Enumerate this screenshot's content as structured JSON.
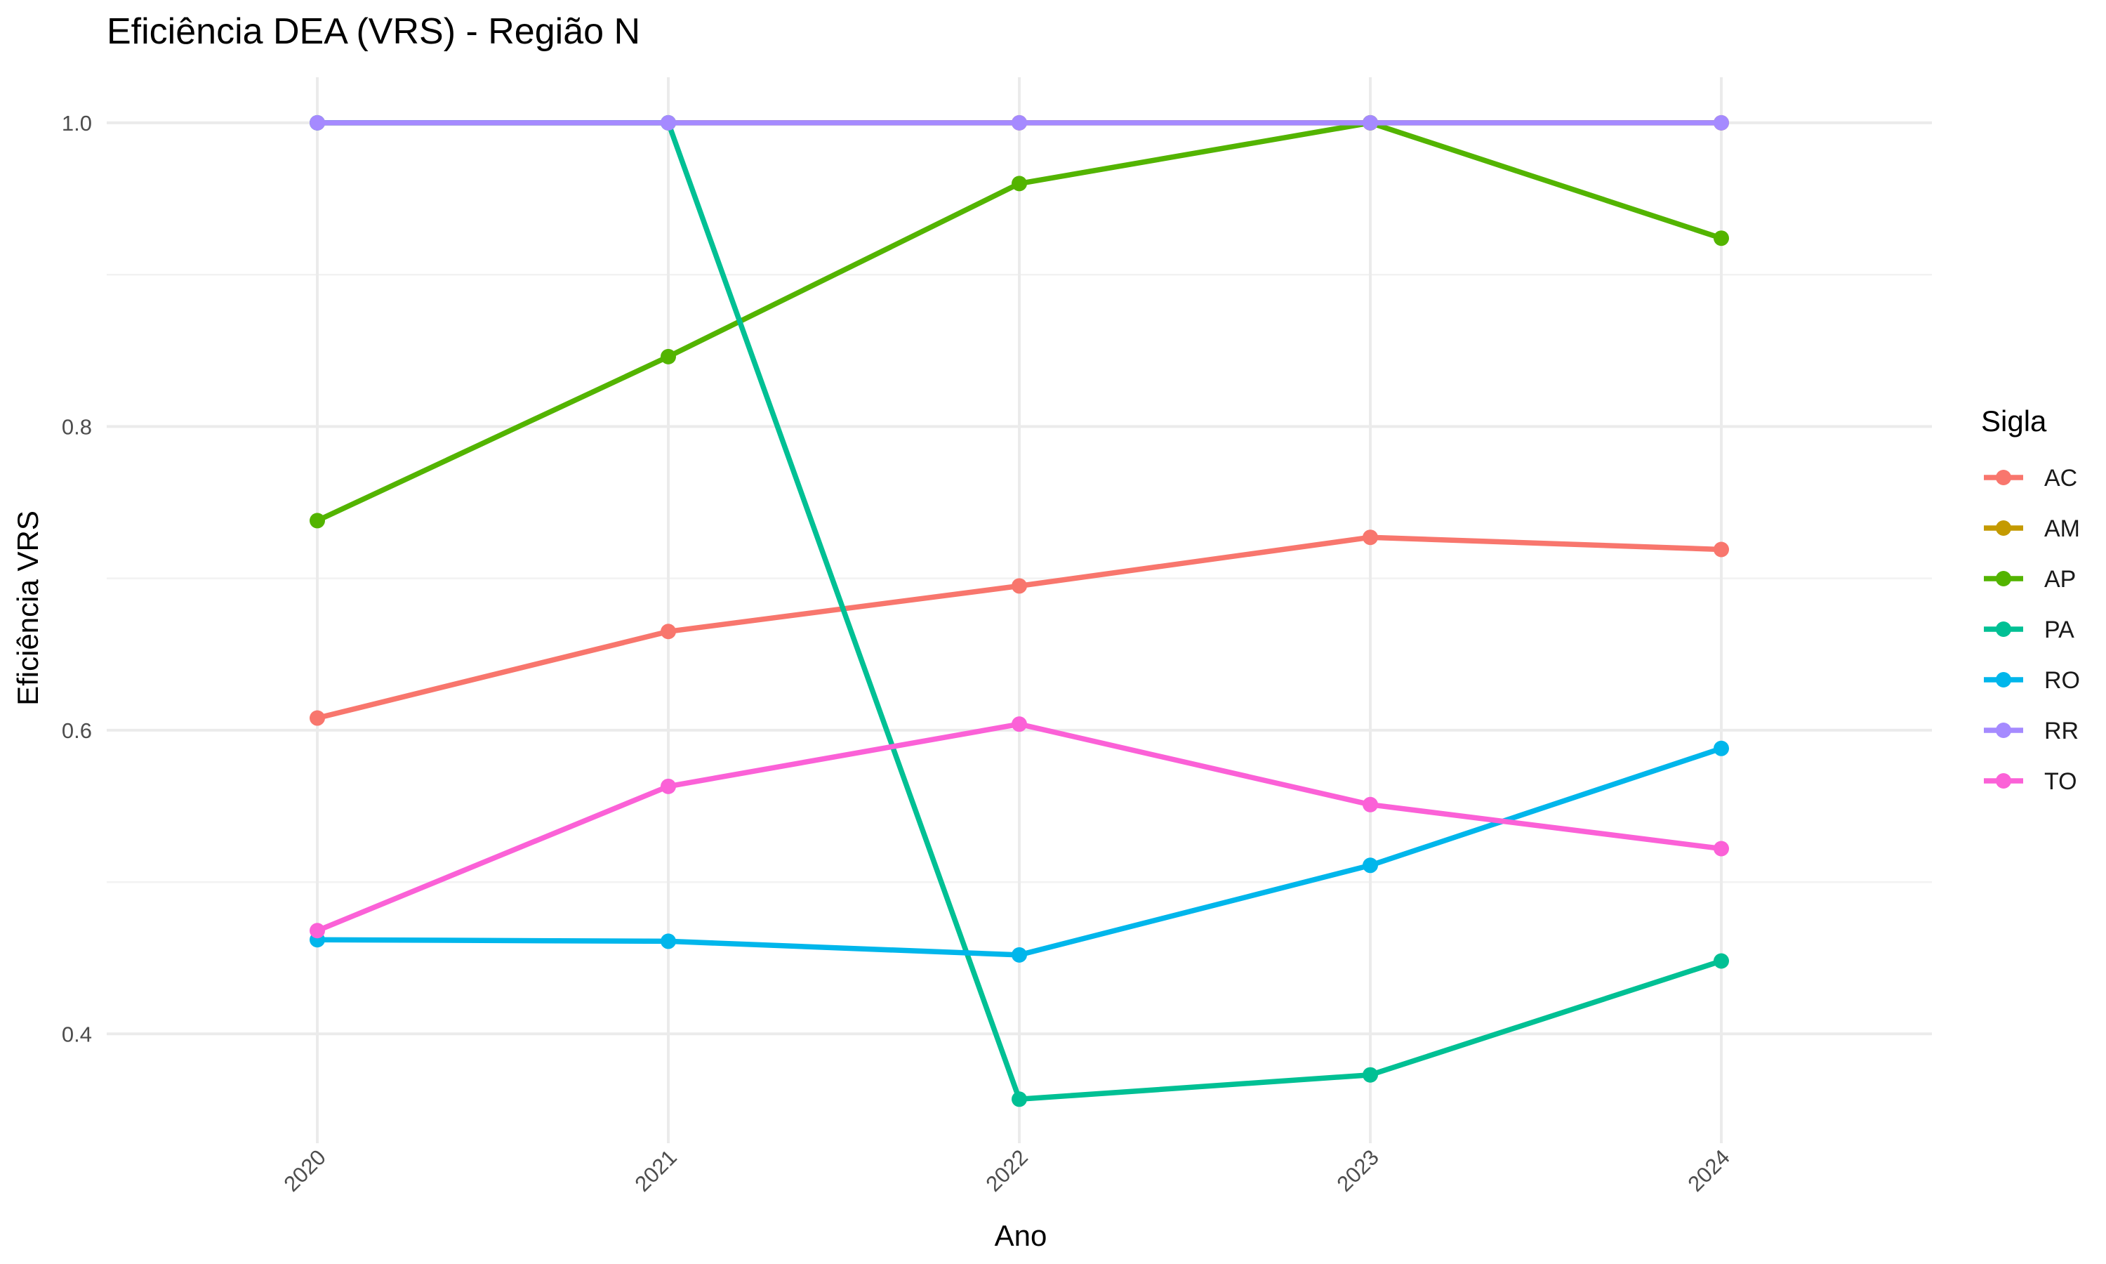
{
  "chart_data": {
    "type": "line",
    "title": "Eficiência DEA (VRS) - Região N",
    "xlabel": "Ano",
    "ylabel": "Eficiência VRS",
    "x": [
      2020,
      2021,
      2022,
      2023,
      2024
    ],
    "x_tick_labels": [
      "2020",
      "2021",
      "2022",
      "2023",
      "2024"
    ],
    "y_ticks": [
      0.4,
      0.6,
      0.8,
      1.0
    ],
    "y_tick_labels": [
      "0.4",
      "0.6",
      "0.8",
      "1.0"
    ],
    "ylim": [
      0.328,
      1.03
    ],
    "xlim": [
      2019.4,
      2024.6
    ],
    "grid": true,
    "legend_title": "Sigla",
    "legend_position": "right",
    "series": [
      {
        "name": "AC",
        "color": "#F8766D",
        "values": [
          0.608,
          0.665,
          0.695,
          0.727,
          0.719
        ]
      },
      {
        "name": "AM",
        "color": "#C49A00",
        "values": [
          1.0,
          1.0,
          1.0,
          1.0,
          1.0
        ]
      },
      {
        "name": "AP",
        "color": "#53B400",
        "values": [
          0.738,
          0.846,
          0.96,
          1.0,
          0.924
        ]
      },
      {
        "name": "PA",
        "color": "#00C094",
        "values": [
          1.0,
          1.0,
          0.357,
          0.373,
          0.448
        ]
      },
      {
        "name": "RO",
        "color": "#00B6EB",
        "values": [
          0.462,
          0.461,
          0.452,
          0.511,
          0.588
        ]
      },
      {
        "name": "RR",
        "color": "#A58AFF",
        "values": [
          1.0,
          1.0,
          1.0,
          1.0,
          1.0
        ]
      },
      {
        "name": "TO",
        "color": "#FB61D7",
        "values": [
          0.468,
          0.563,
          0.604,
          0.551,
          0.522
        ]
      }
    ]
  }
}
